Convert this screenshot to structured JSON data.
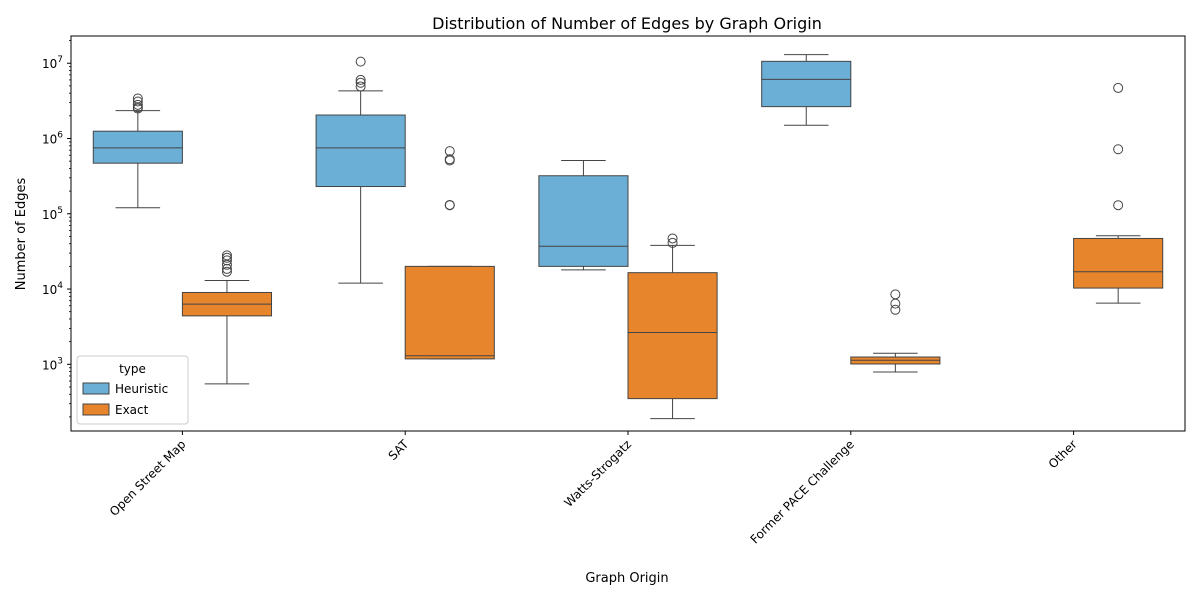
{
  "chart_data": {
    "type": "box",
    "title": "Distribution of Number of Edges by Graph Origin",
    "xlabel": "Graph Origin",
    "ylabel": "Number of Edges",
    "yscale": "log",
    "ylim": [
      130,
      23000000
    ],
    "y_ticks": [
      {
        "value": 1000,
        "label": "10",
        "exp": "3"
      },
      {
        "value": 10000,
        "label": "10",
        "exp": "4"
      },
      {
        "value": 100000,
        "label": "10",
        "exp": "5"
      },
      {
        "value": 1000000,
        "label": "10",
        "exp": "6"
      },
      {
        "value": 10000000,
        "label": "10",
        "exp": "7"
      }
    ],
    "categories": [
      "Open Street Map",
      "SAT",
      "Watts-Strogatz",
      "Former PACE Challenge",
      "Other"
    ],
    "legend": {
      "title": "type",
      "position": "lower-left",
      "entries": [
        "Heuristic",
        "Exact"
      ]
    },
    "series": [
      {
        "name": "Heuristic",
        "color": "#6baed6",
        "boxes": [
          {
            "category": "Open Street Map",
            "whisker_low": 120000,
            "q1": 470000,
            "median": 750000,
            "q3": 1250000,
            "whisker_high": 2350000,
            "outliers": [
              2500000,
              2600000,
              2800000,
              3100000,
              3400000
            ]
          },
          {
            "category": "SAT",
            "whisker_low": 12000,
            "q1": 230000,
            "median": 750000,
            "q3": 2050000,
            "whisker_high": 4300000,
            "outliers": [
              4900000,
              5500000,
              6000000,
              10500000
            ]
          },
          {
            "category": "Watts-Strogatz",
            "whisker_low": 18000,
            "q1": 20000,
            "median": 37000,
            "q3": 320000,
            "whisker_high": 510000,
            "outliers": []
          },
          {
            "category": "Former PACE Challenge",
            "whisker_low": 1500000,
            "q1": 2650000,
            "median": 6100000,
            "q3": 10600000,
            "whisker_high": 13000000,
            "outliers": []
          },
          {
            "category": "Other",
            "whisker_low": null,
            "q1": null,
            "median": null,
            "q3": null,
            "whisker_high": null,
            "outliers": []
          }
        ]
      },
      {
        "name": "Exact",
        "color": "#e6852c",
        "boxes": [
          {
            "category": "Open Street Map",
            "whisker_low": 550,
            "q1": 4400,
            "median": 6300,
            "q3": 9000,
            "whisker_high": 13000,
            "outliers": [
              17000,
              18500,
              21000,
              24000,
              26000,
              28000
            ]
          },
          {
            "category": "SAT",
            "whisker_low": 1180,
            "q1": 1180,
            "median": 1300,
            "q3": 20000,
            "whisker_high": 20000,
            "outliers": [
              130000,
              131000,
              510000,
              530000,
              680000
            ]
          },
          {
            "category": "Watts-Strogatz",
            "whisker_low": 190,
            "q1": 350,
            "median": 2650,
            "q3": 16500,
            "whisker_high": 38000,
            "outliers": [
              41000,
              47000
            ]
          },
          {
            "category": "Former PACE Challenge",
            "whisker_low": 790,
            "q1": 1010,
            "median": 1130,
            "q3": 1250,
            "whisker_high": 1400,
            "outliers": [
              5300,
              6400,
              8500
            ]
          },
          {
            "category": "Other",
            "whisker_low": 6500,
            "q1": 10300,
            "median": 17000,
            "q3": 47000,
            "whisker_high": 51000,
            "outliers": [
              130000,
              720000,
              4700000
            ]
          }
        ]
      }
    ]
  }
}
